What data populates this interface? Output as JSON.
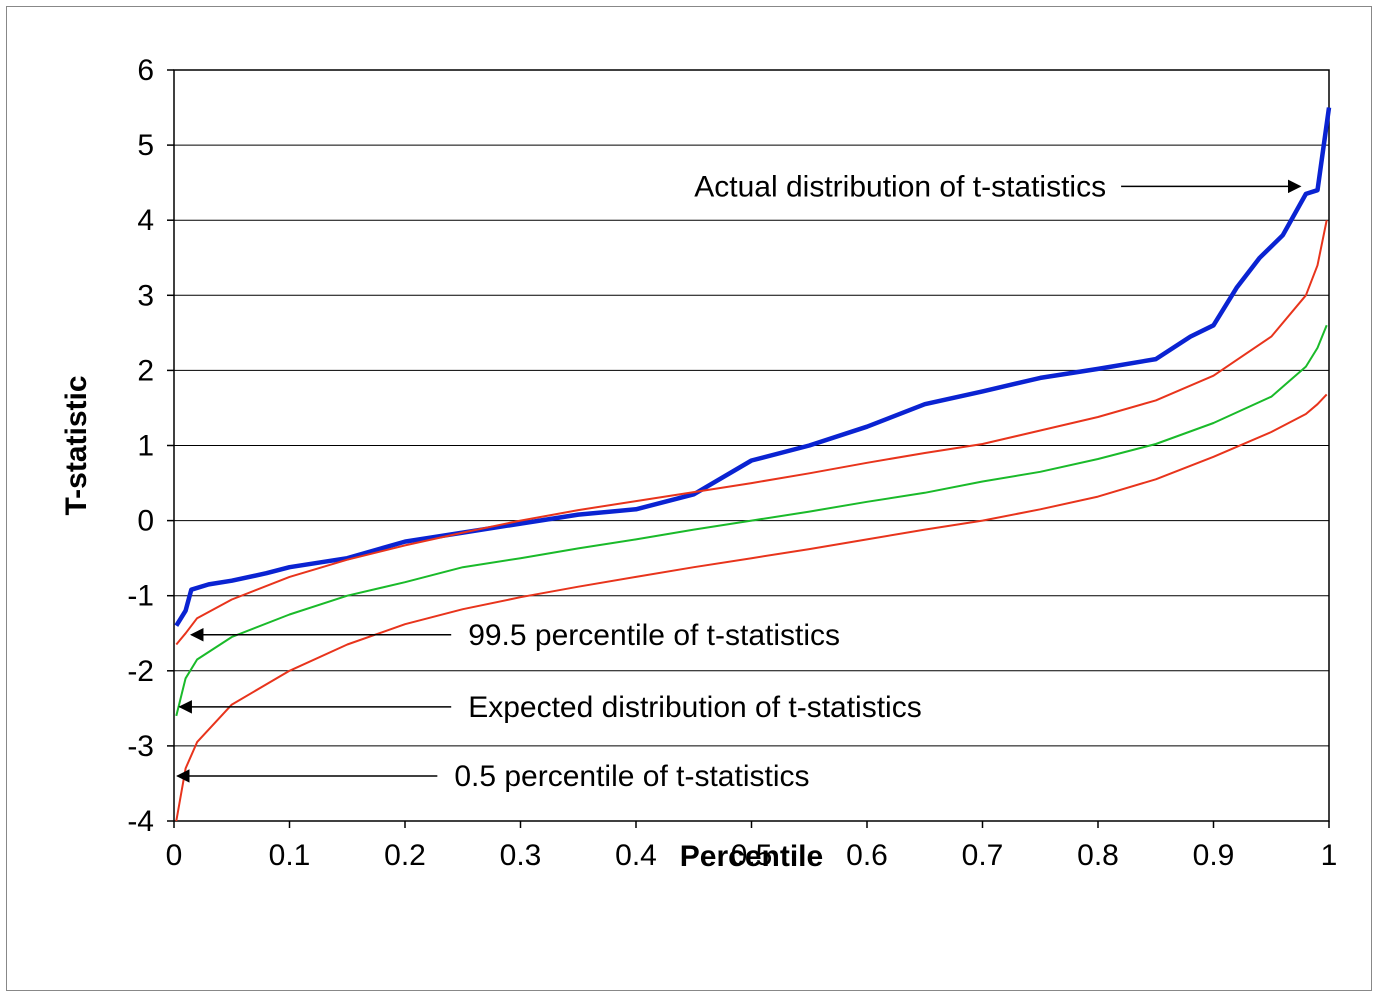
{
  "chart_data": {
    "type": "line",
    "xlabel": "Percentile",
    "ylabel": "T-statistic",
    "xlim": [
      0,
      1
    ],
    "ylim": [
      -4,
      6
    ],
    "grid": "horizontal",
    "x_ticks": [
      "0",
      "0.1",
      "0.2",
      "0.3",
      "0.4",
      "0.5",
      "0.6",
      "0.7",
      "0.8",
      "0.9",
      "1"
    ],
    "y_ticks": [
      "6",
      "5",
      "4",
      "3",
      "2",
      "1",
      "0",
      "-1",
      "-2",
      "-3",
      "-4"
    ],
    "series": [
      {
        "color": "#0a23d2",
        "x": [
          0.002,
          0.01,
          0.015,
          0.03,
          0.05,
          0.08,
          0.1,
          0.15,
          0.2,
          0.25,
          0.3,
          0.35,
          0.4,
          0.45,
          0.5,
          0.55,
          0.6,
          0.65,
          0.7,
          0.75,
          0.8,
          0.85,
          0.88,
          0.9,
          0.92,
          0.94,
          0.96,
          0.98,
          0.99,
          1.0
        ],
        "values": [
          -1.4,
          -1.2,
          -0.92,
          -0.85,
          -0.8,
          -0.7,
          -0.62,
          -0.5,
          -0.28,
          -0.16,
          -0.04,
          0.08,
          0.15,
          0.35,
          0.8,
          1.0,
          1.25,
          1.55,
          1.72,
          1.9,
          2.02,
          2.15,
          2.45,
          2.6,
          3.1,
          3.5,
          3.8,
          4.35,
          4.4,
          5.5
        ]
      },
      {
        "color": "#e8341c",
        "x": [
          0.002,
          0.01,
          0.02,
          0.05,
          0.1,
          0.15,
          0.2,
          0.25,
          0.3,
          0.35,
          0.4,
          0.45,
          0.5,
          0.55,
          0.6,
          0.65,
          0.7,
          0.75,
          0.8,
          0.85,
          0.9,
          0.95,
          0.98,
          0.99,
          0.998
        ],
        "values": [
          -1.65,
          -1.5,
          -1.3,
          -1.05,
          -0.75,
          -0.52,
          -0.33,
          -0.16,
          0.0,
          0.14,
          0.26,
          0.38,
          0.5,
          0.63,
          0.77,
          0.9,
          1.02,
          1.2,
          1.38,
          1.6,
          1.93,
          2.45,
          3.0,
          3.4,
          4.0
        ]
      },
      {
        "color": "#1aba2a",
        "x": [
          0.002,
          0.01,
          0.02,
          0.05,
          0.1,
          0.15,
          0.2,
          0.25,
          0.3,
          0.35,
          0.4,
          0.45,
          0.5,
          0.55,
          0.6,
          0.65,
          0.7,
          0.75,
          0.8,
          0.85,
          0.9,
          0.95,
          0.98,
          0.99,
          0.998
        ],
        "values": [
          -2.6,
          -2.1,
          -1.85,
          -1.55,
          -1.25,
          -1.0,
          -0.82,
          -0.62,
          -0.5,
          -0.37,
          -0.25,
          -0.12,
          0.0,
          0.12,
          0.25,
          0.37,
          0.52,
          0.65,
          0.82,
          1.02,
          1.3,
          1.65,
          2.05,
          2.3,
          2.6
        ]
      },
      {
        "color": "#e8341c",
        "x": [
          0.002,
          0.01,
          0.02,
          0.05,
          0.1,
          0.15,
          0.2,
          0.25,
          0.3,
          0.35,
          0.4,
          0.45,
          0.5,
          0.55,
          0.6,
          0.65,
          0.7,
          0.75,
          0.8,
          0.85,
          0.9,
          0.95,
          0.98,
          0.99,
          0.998
        ],
        "values": [
          -4.0,
          -3.3,
          -2.95,
          -2.45,
          -2.0,
          -1.65,
          -1.38,
          -1.18,
          -1.02,
          -0.88,
          -0.75,
          -0.62,
          -0.5,
          -0.38,
          -0.25,
          -0.12,
          0.0,
          0.15,
          0.32,
          0.55,
          0.85,
          1.18,
          1.42,
          1.55,
          1.68
        ]
      }
    ],
    "annotations": [
      {
        "text": "Actual distribution of t-statistics",
        "arrow_from": [
          0.82,
          4.45
        ],
        "arrow_to": [
          0.975,
          4.45
        ]
      },
      {
        "text": "99.5 percentile of t-statistics",
        "arrow_from": [
          0.24,
          -1.52
        ],
        "arrow_to": [
          0.015,
          -1.52
        ]
      },
      {
        "text": "Expected distribution of t-statistics",
        "arrow_from": [
          0.24,
          -2.48
        ],
        "arrow_to": [
          0.005,
          -2.48
        ]
      },
      {
        "text": "0.5 percentile of t-statistics",
        "arrow_from": [
          0.228,
          -3.4
        ],
        "arrow_to": [
          0.003,
          -3.4
        ]
      }
    ]
  }
}
